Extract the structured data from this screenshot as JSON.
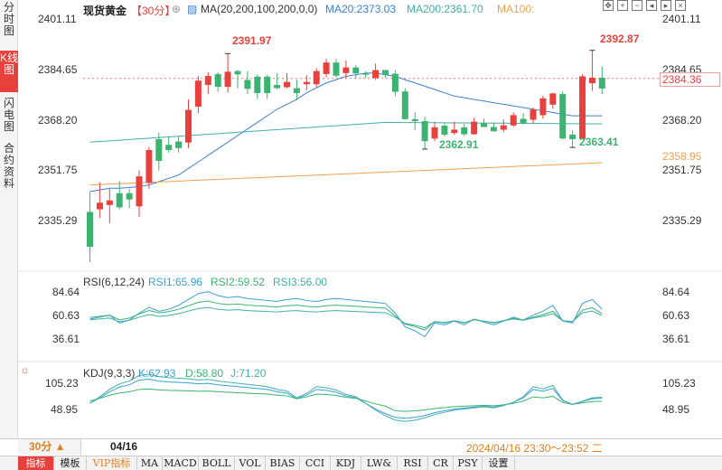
{
  "sidebar": {
    "tabs": [
      "分时图",
      "K线图",
      "闪电图",
      "合约资料"
    ]
  },
  "header": {
    "title": "现货黄金",
    "period": "【30分】",
    "ma_label": "MA(20,200,100,200,0,0)",
    "ma20": "MA20:2373.03",
    "ma200": "MA200:2361.70",
    "ma100": "MA100:"
  },
  "toolbar_icons": [
    "move-icon",
    "plus-icon",
    "minus-icon",
    "left-icon",
    "right-icon",
    "close-icon"
  ],
  "price_axis": [
    "2401.11",
    "2384.65",
    "2368.20",
    "2351.75",
    "2335.29"
  ],
  "current_price": "2384.36",
  "ma_price_label": "2358.95",
  "annotations": {
    "high1": "2391.97",
    "high2": "2392.87",
    "low1": "2362.91",
    "low2": "2363.41"
  },
  "rsi": {
    "label": "RSI(6,12,24)",
    "rsi1": "RSI1:65.96",
    "rsi2": "RSI2:59.52",
    "rsi3": "RSI3:56.00",
    "axis": [
      "84.64",
      "60.63",
      "36.61"
    ]
  },
  "kdj": {
    "label": "KDJ(9,3,3)",
    "k": "K:62.93",
    "d": "D:58.80",
    "j": "J:71.20",
    "axis": [
      "105.23",
      "48.95"
    ]
  },
  "footer": {
    "period_btn": "30分 ▲",
    "date": "04/16",
    "timerange": "2024/04/16 23:30～23:52 二"
  },
  "indicators": [
    "指标",
    "模板",
    "VIP指标",
    "MA",
    "MACD",
    "BOLL",
    "VOL",
    "BIAS",
    "CCI",
    "KDJ",
    "LW&",
    "RSI",
    "CR",
    "PSY",
    "设置"
  ],
  "colors": {
    "up": "#e8403c",
    "down": "#3cb371",
    "ma20": "#3a7fd5",
    "ma200": "#40b0a8",
    "ma100": "#f0a050",
    "blue": "#3a9fd5"
  },
  "chart_data": {
    "type": "candlestick",
    "title": "现货黄金 30分",
    "ylim": [
      2328,
      2406
    ],
    "candles": [
      {
        "o": 2343.8,
        "h": 2349.8,
        "l": 2328.6,
        "c": 2333.2
      },
      {
        "o": 2344.6,
        "h": 2352.8,
        "l": 2342.0,
        "c": 2346.6
      },
      {
        "o": 2345.9,
        "h": 2350.8,
        "l": 2340.4,
        "c": 2347.3
      },
      {
        "o": 2349.5,
        "h": 2353.1,
        "l": 2344.6,
        "c": 2345.2
      },
      {
        "o": 2349.5,
        "h": 2350.8,
        "l": 2344.9,
        "c": 2347.6
      },
      {
        "o": 2345.5,
        "h": 2356.4,
        "l": 2342.3,
        "c": 2354.6
      },
      {
        "o": 2352.6,
        "h": 2363.5,
        "l": 2350.8,
        "c": 2362.6
      },
      {
        "o": 2365.9,
        "h": 2367.9,
        "l": 2356.3,
        "c": 2359.3
      },
      {
        "o": 2364.2,
        "h": 2366.9,
        "l": 2361.8,
        "c": 2362.6
      },
      {
        "o": 2365.2,
        "h": 2366.9,
        "l": 2361.9,
        "c": 2363.2
      },
      {
        "o": 2364.9,
        "h": 2378.0,
        "l": 2363.2,
        "c": 2374.8
      },
      {
        "o": 2375.8,
        "h": 2385.1,
        "l": 2373.8,
        "c": 2383.7
      },
      {
        "o": 2382.4,
        "h": 2386.3,
        "l": 2379.7,
        "c": 2385.1
      },
      {
        "o": 2385.7,
        "h": 2386.3,
        "l": 2380.4,
        "c": 2381.8
      },
      {
        "o": 2381.8,
        "h": 2391.9,
        "l": 2380.1,
        "c": 2386.4
      },
      {
        "o": 2386.6,
        "h": 2386.9,
        "l": 2381.4,
        "c": 2385.6
      },
      {
        "o": 2383.9,
        "h": 2386.6,
        "l": 2379.6,
        "c": 2381.2
      },
      {
        "o": 2384.9,
        "h": 2385.5,
        "l": 2378.1,
        "c": 2379.9
      },
      {
        "o": 2384.9,
        "h": 2385.5,
        "l": 2378.1,
        "c": 2379.9
      },
      {
        "o": 2382.4,
        "h": 2385.9,
        "l": 2381.1,
        "c": 2381.4
      },
      {
        "o": 2381.7,
        "h": 2386.0,
        "l": 2381.4,
        "c": 2383.3
      },
      {
        "o": 2381.4,
        "h": 2384.0,
        "l": 2377.8,
        "c": 2379.9
      },
      {
        "o": 2382.6,
        "h": 2385.3,
        "l": 2380.7,
        "c": 2383.3
      },
      {
        "o": 2382.6,
        "h": 2387.5,
        "l": 2381.7,
        "c": 2386.6
      },
      {
        "o": 2385.7,
        "h": 2390.3,
        "l": 2384.7,
        "c": 2389.2
      },
      {
        "o": 2389.2,
        "h": 2390.3,
        "l": 2384.7,
        "c": 2385.2
      },
      {
        "o": 2386.0,
        "h": 2389.8,
        "l": 2384.5,
        "c": 2387.7
      },
      {
        "o": 2387.7,
        "h": 2388.4,
        "l": 2384.3,
        "c": 2385.9
      },
      {
        "o": 2385.9,
        "h": 2386.6,
        "l": 2384.5,
        "c": 2385.5
      },
      {
        "o": 2384.5,
        "h": 2388.9,
        "l": 2383.9,
        "c": 2386.9
      },
      {
        "o": 2386.9,
        "h": 2387.0,
        "l": 2384.6,
        "c": 2385.5
      },
      {
        "o": 2385.8,
        "h": 2386.9,
        "l": 2379.0,
        "c": 2380.3
      },
      {
        "o": 2380.4,
        "h": 2381.4,
        "l": 2371.8,
        "c": 2372.0
      },
      {
        "o": 2372.0,
        "h": 2374.1,
        "l": 2368.6,
        "c": 2371.4
      },
      {
        "o": 2371.4,
        "h": 2372.8,
        "l": 2362.9,
        "c": 2365.3
      },
      {
        "o": 2366.1,
        "h": 2371.2,
        "l": 2365.3,
        "c": 2369.5
      },
      {
        "o": 2370.0,
        "h": 2370.9,
        "l": 2366.7,
        "c": 2367.3
      },
      {
        "o": 2367.8,
        "h": 2371.2,
        "l": 2367.2,
        "c": 2368.8
      },
      {
        "o": 2369.5,
        "h": 2370.6,
        "l": 2366.9,
        "c": 2367.4
      },
      {
        "o": 2367.4,
        "h": 2372.4,
        "l": 2367.3,
        "c": 2371.2
      },
      {
        "o": 2370.7,
        "h": 2372.2,
        "l": 2369.6,
        "c": 2369.6
      },
      {
        "o": 2369.6,
        "h": 2371.0,
        "l": 2368.2,
        "c": 2368.3
      },
      {
        "o": 2368.8,
        "h": 2371.9,
        "l": 2368.1,
        "c": 2370.1
      },
      {
        "o": 2370.1,
        "h": 2374.0,
        "l": 2369.6,
        "c": 2373.2
      },
      {
        "o": 2372.1,
        "h": 2373.8,
        "l": 2370.4,
        "c": 2370.8
      },
      {
        "o": 2371.8,
        "h": 2375.5,
        "l": 2370.7,
        "c": 2374.9
      },
      {
        "o": 2373.2,
        "h": 2379.1,
        "l": 2372.1,
        "c": 2378.3
      },
      {
        "o": 2376.4,
        "h": 2380.0,
        "l": 2375.1,
        "c": 2379.8
      },
      {
        "o": 2379.6,
        "h": 2380.4,
        "l": 2365.8,
        "c": 2366.1
      },
      {
        "o": 2367.3,
        "h": 2368.6,
        "l": 2363.4,
        "c": 2365.9
      },
      {
        "o": 2366.0,
        "h": 2385.6,
        "l": 2365.8,
        "c": 2385.0
      },
      {
        "o": 2382.9,
        "h": 2392.9,
        "l": 2380.6,
        "c": 2384.6
      },
      {
        "o": 2384.6,
        "h": 2388.0,
        "l": 2379.6,
        "c": 2381.3
      }
    ]
  }
}
